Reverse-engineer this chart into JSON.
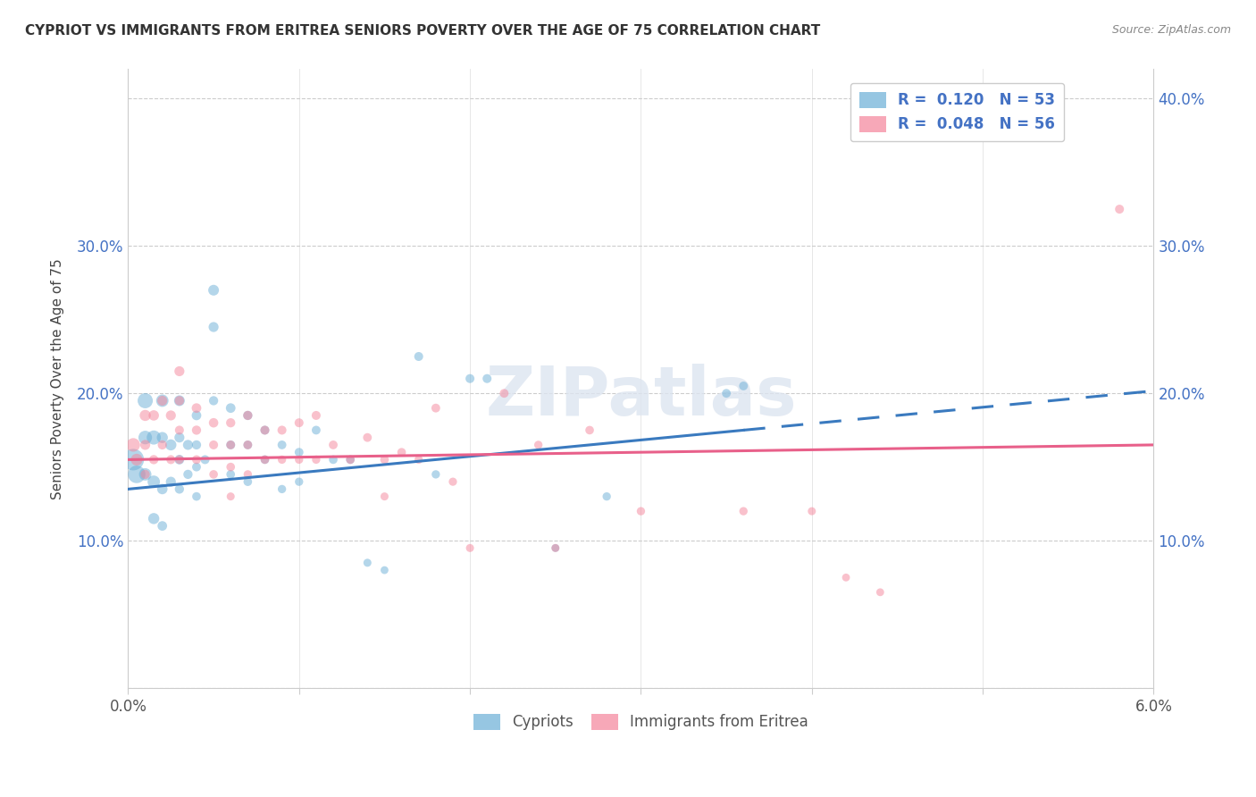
{
  "title": "CYPRIOT VS IMMIGRANTS FROM ERITREA SENIORS POVERTY OVER THE AGE OF 75 CORRELATION CHART",
  "source": "Source: ZipAtlas.com",
  "ylabel": "Seniors Poverty Over the Age of 75",
  "xlim": [
    0.0,
    0.06
  ],
  "ylim": [
    0.0,
    0.42
  ],
  "xticks": [
    0.0,
    0.01,
    0.02,
    0.03,
    0.04,
    0.05,
    0.06
  ],
  "yticks": [
    0.0,
    0.1,
    0.2,
    0.3,
    0.4
  ],
  "xtick_labels": [
    "0.0%",
    "",
    "",
    "",
    "",
    "",
    "6.0%"
  ],
  "ytick_labels_left": [
    "",
    "10.0%",
    "20.0%",
    "30.0%",
    ""
  ],
  "ytick_labels_right": [
    "",
    "10.0%",
    "20.0%",
    "30.0%",
    "40.0%"
  ],
  "legend_bottom": [
    "Cypriots",
    "Immigrants from Eritrea"
  ],
  "R_cypriot": 0.12,
  "N_cypriot": 53,
  "R_eritrea": 0.048,
  "N_eritrea": 56,
  "blue_color": "#6aaed6",
  "pink_color": "#f4849a",
  "blue_line_color": "#3a7abf",
  "pink_line_color": "#e8608a",
  "watermark_color": "#d0d8e8",
  "cypriot_x": [
    0.0003,
    0.0005,
    0.001,
    0.001,
    0.001,
    0.0015,
    0.0015,
    0.0015,
    0.002,
    0.002,
    0.002,
    0.002,
    0.0025,
    0.0025,
    0.003,
    0.003,
    0.003,
    0.003,
    0.0035,
    0.0035,
    0.004,
    0.004,
    0.004,
    0.004,
    0.0045,
    0.005,
    0.005,
    0.005,
    0.006,
    0.006,
    0.006,
    0.007,
    0.007,
    0.007,
    0.008,
    0.008,
    0.009,
    0.009,
    0.01,
    0.01,
    0.011,
    0.012,
    0.013,
    0.014,
    0.015,
    0.017,
    0.018,
    0.02,
    0.021,
    0.025,
    0.028,
    0.035,
    0.036
  ],
  "cypriot_y": [
    0.155,
    0.145,
    0.195,
    0.17,
    0.145,
    0.17,
    0.14,
    0.115,
    0.195,
    0.17,
    0.135,
    0.11,
    0.165,
    0.14,
    0.195,
    0.17,
    0.155,
    0.135,
    0.165,
    0.145,
    0.185,
    0.165,
    0.15,
    0.13,
    0.155,
    0.27,
    0.245,
    0.195,
    0.19,
    0.165,
    0.145,
    0.185,
    0.165,
    0.14,
    0.175,
    0.155,
    0.165,
    0.135,
    0.16,
    0.14,
    0.175,
    0.155,
    0.155,
    0.085,
    0.08,
    0.225,
    0.145,
    0.21,
    0.21,
    0.095,
    0.13,
    0.2,
    0.205
  ],
  "cypriot_sizes": [
    300,
    200,
    150,
    120,
    100,
    130,
    100,
    80,
    100,
    80,
    70,
    60,
    80,
    65,
    75,
    65,
    60,
    55,
    65,
    55,
    60,
    55,
    50,
    48,
    52,
    75,
    65,
    55,
    60,
    52,
    48,
    55,
    50,
    48,
    52,
    48,
    50,
    45,
    50,
    45,
    50,
    48,
    48,
    42,
    40,
    52,
    45,
    52,
    52,
    40,
    45,
    50,
    50
  ],
  "eritrea_x": [
    0.0003,
    0.0005,
    0.001,
    0.001,
    0.001,
    0.0015,
    0.0015,
    0.002,
    0.002,
    0.0025,
    0.0025,
    0.003,
    0.003,
    0.003,
    0.003,
    0.004,
    0.004,
    0.004,
    0.005,
    0.005,
    0.005,
    0.006,
    0.006,
    0.006,
    0.006,
    0.007,
    0.007,
    0.007,
    0.008,
    0.008,
    0.009,
    0.009,
    0.01,
    0.01,
    0.011,
    0.011,
    0.012,
    0.013,
    0.014,
    0.015,
    0.015,
    0.016,
    0.017,
    0.018,
    0.019,
    0.02,
    0.022,
    0.024,
    0.025,
    0.027,
    0.03,
    0.036,
    0.04,
    0.042,
    0.044,
    0.058
  ],
  "eritrea_y": [
    0.165,
    0.155,
    0.185,
    0.165,
    0.145,
    0.185,
    0.155,
    0.195,
    0.165,
    0.185,
    0.155,
    0.215,
    0.195,
    0.175,
    0.155,
    0.19,
    0.175,
    0.155,
    0.18,
    0.165,
    0.145,
    0.18,
    0.165,
    0.15,
    0.13,
    0.185,
    0.165,
    0.145,
    0.175,
    0.155,
    0.175,
    0.155,
    0.18,
    0.155,
    0.185,
    0.155,
    0.165,
    0.155,
    0.17,
    0.155,
    0.13,
    0.16,
    0.155,
    0.19,
    0.14,
    0.095,
    0.2,
    0.165,
    0.095,
    0.175,
    0.12,
    0.12,
    0.12,
    0.075,
    0.065,
    0.325
  ],
  "eritrea_sizes": [
    120,
    90,
    80,
    65,
    55,
    70,
    55,
    65,
    55,
    65,
    52,
    65,
    58,
    52,
    48,
    60,
    55,
    50,
    58,
    52,
    48,
    55,
    50,
    48,
    42,
    55,
    50,
    45,
    52,
    48,
    52,
    45,
    52,
    45,
    52,
    45,
    50,
    48,
    50,
    48,
    42,
    48,
    45,
    50,
    44,
    42,
    50,
    45,
    42,
    48,
    45,
    45,
    42,
    40,
    40,
    52
  ]
}
